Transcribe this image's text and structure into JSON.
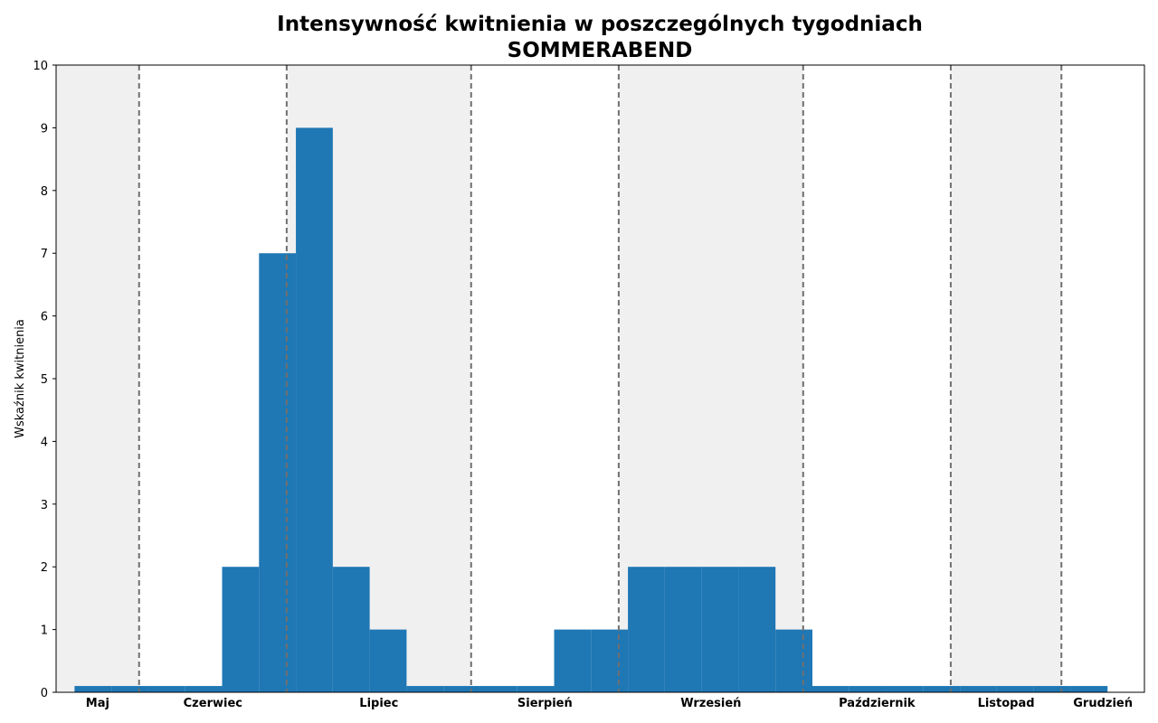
{
  "chart_data": {
    "type": "bar",
    "title": "Intensywność kwitnienia w poszczególnych tygodniach",
    "subtitle": "SOMMERABEND",
    "xlabel": "",
    "ylabel": "Wskaźnik kwitnienia",
    "ylim": [
      0,
      10
    ],
    "yticks": [
      0,
      1,
      2,
      3,
      4,
      5,
      6,
      7,
      8,
      9,
      10
    ],
    "xlim": [
      0,
      29.5
    ],
    "grid": false,
    "legend": "none",
    "bar_color": "#1f77b4",
    "shade_color": "#f0f0f0",
    "divider_color": "#707070",
    "x": [
      1,
      2,
      3,
      4,
      5,
      6,
      7,
      8,
      9,
      10,
      11,
      12,
      13,
      14,
      15,
      16,
      17,
      18,
      19,
      20,
      21,
      22,
      23,
      24,
      25,
      26,
      27,
      28
    ],
    "values": [
      0.1,
      0.1,
      0.1,
      0.1,
      2,
      7,
      9,
      2,
      1,
      0.1,
      0.1,
      0.1,
      0.1,
      1,
      1,
      2,
      2,
      2,
      2,
      1,
      0.1,
      0.1,
      0.1,
      0.1,
      0.1,
      0.1,
      0.1,
      0.1
    ],
    "months": [
      {
        "label": "Maj",
        "start": 0,
        "end": 2.25
      },
      {
        "label": "Czerwiec",
        "start": 2.25,
        "end": 6.25
      },
      {
        "label": "Lipiec",
        "start": 6.25,
        "end": 11.25
      },
      {
        "label": "Sierpień",
        "start": 11.25,
        "end": 15.25
      },
      {
        "label": "Wrzesień",
        "start": 15.25,
        "end": 20.25
      },
      {
        "label": "Październik",
        "start": 20.25,
        "end": 24.25
      },
      {
        "label": "Listopad",
        "start": 24.25,
        "end": 27.25
      },
      {
        "label": "Grudzień",
        "start": 27.25,
        "end": 29.5
      }
    ]
  }
}
